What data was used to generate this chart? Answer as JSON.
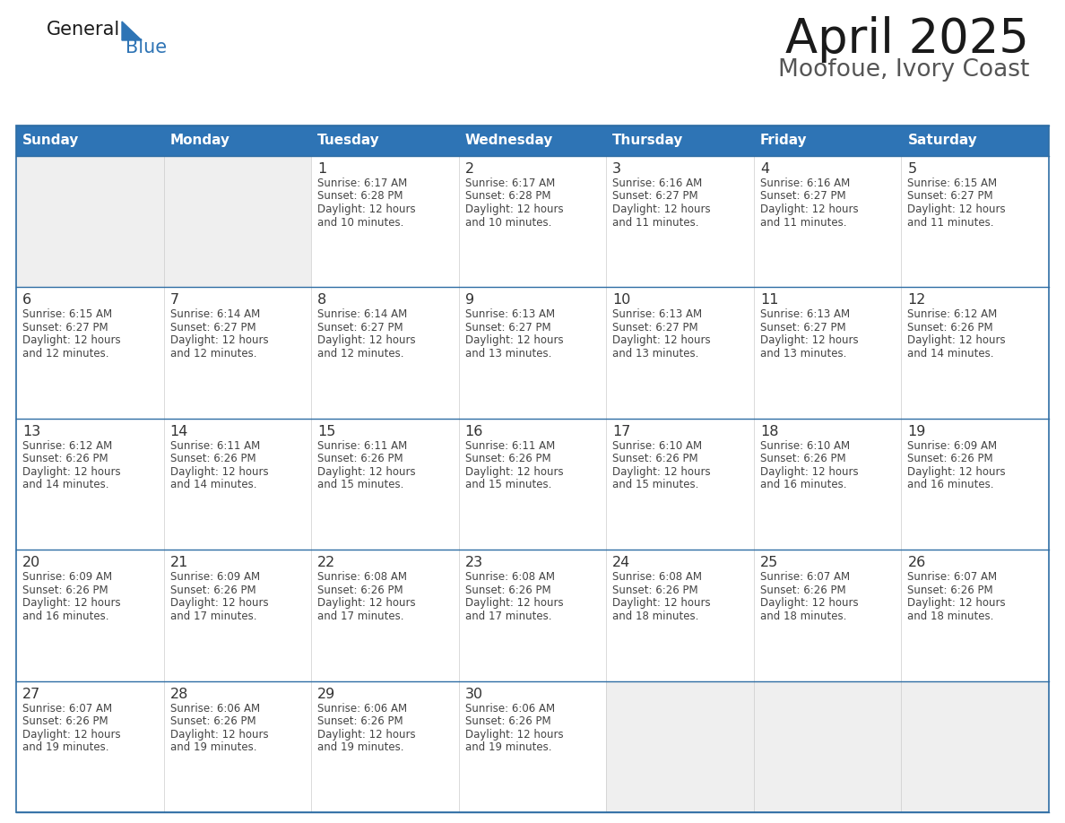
{
  "title": "April 2025",
  "subtitle": "Moofoue, Ivory Coast",
  "header_bg": "#2E74B5",
  "header_text_color": "#FFFFFF",
  "cell_bg_empty": "#EFEFEF",
  "cell_bg_filled": "#FFFFFF",
  "row_separator_color": "#2E6DA4",
  "text_color": "#444444",
  "day_number_color": "#333333",
  "day_headers": [
    "Sunday",
    "Monday",
    "Tuesday",
    "Wednesday",
    "Thursday",
    "Friday",
    "Saturday"
  ],
  "calendar": [
    [
      {
        "day": null,
        "sunrise": null,
        "sunset": null,
        "daylight_line1": null,
        "daylight_line2": null
      },
      {
        "day": null,
        "sunrise": null,
        "sunset": null,
        "daylight_line1": null,
        "daylight_line2": null
      },
      {
        "day": 1,
        "sunrise": "6:17 AM",
        "sunset": "6:28 PM",
        "daylight_line1": "12 hours",
        "daylight_line2": "and 10 minutes."
      },
      {
        "day": 2,
        "sunrise": "6:17 AM",
        "sunset": "6:28 PM",
        "daylight_line1": "12 hours",
        "daylight_line2": "and 10 minutes."
      },
      {
        "day": 3,
        "sunrise": "6:16 AM",
        "sunset": "6:27 PM",
        "daylight_line1": "12 hours",
        "daylight_line2": "and 11 minutes."
      },
      {
        "day": 4,
        "sunrise": "6:16 AM",
        "sunset": "6:27 PM",
        "daylight_line1": "12 hours",
        "daylight_line2": "and 11 minutes."
      },
      {
        "day": 5,
        "sunrise": "6:15 AM",
        "sunset": "6:27 PM",
        "daylight_line1": "12 hours",
        "daylight_line2": "and 11 minutes."
      }
    ],
    [
      {
        "day": 6,
        "sunrise": "6:15 AM",
        "sunset": "6:27 PM",
        "daylight_line1": "12 hours",
        "daylight_line2": "and 12 minutes."
      },
      {
        "day": 7,
        "sunrise": "6:14 AM",
        "sunset": "6:27 PM",
        "daylight_line1": "12 hours",
        "daylight_line2": "and 12 minutes."
      },
      {
        "day": 8,
        "sunrise": "6:14 AM",
        "sunset": "6:27 PM",
        "daylight_line1": "12 hours",
        "daylight_line2": "and 12 minutes."
      },
      {
        "day": 9,
        "sunrise": "6:13 AM",
        "sunset": "6:27 PM",
        "daylight_line1": "12 hours",
        "daylight_line2": "and 13 minutes."
      },
      {
        "day": 10,
        "sunrise": "6:13 AM",
        "sunset": "6:27 PM",
        "daylight_line1": "12 hours",
        "daylight_line2": "and 13 minutes."
      },
      {
        "day": 11,
        "sunrise": "6:13 AM",
        "sunset": "6:27 PM",
        "daylight_line1": "12 hours",
        "daylight_line2": "and 13 minutes."
      },
      {
        "day": 12,
        "sunrise": "6:12 AM",
        "sunset": "6:26 PM",
        "daylight_line1": "12 hours",
        "daylight_line2": "and 14 minutes."
      }
    ],
    [
      {
        "day": 13,
        "sunrise": "6:12 AM",
        "sunset": "6:26 PM",
        "daylight_line1": "12 hours",
        "daylight_line2": "and 14 minutes."
      },
      {
        "day": 14,
        "sunrise": "6:11 AM",
        "sunset": "6:26 PM",
        "daylight_line1": "12 hours",
        "daylight_line2": "and 14 minutes."
      },
      {
        "day": 15,
        "sunrise": "6:11 AM",
        "sunset": "6:26 PM",
        "daylight_line1": "12 hours",
        "daylight_line2": "and 15 minutes."
      },
      {
        "day": 16,
        "sunrise": "6:11 AM",
        "sunset": "6:26 PM",
        "daylight_line1": "12 hours",
        "daylight_line2": "and 15 minutes."
      },
      {
        "day": 17,
        "sunrise": "6:10 AM",
        "sunset": "6:26 PM",
        "daylight_line1": "12 hours",
        "daylight_line2": "and 15 minutes."
      },
      {
        "day": 18,
        "sunrise": "6:10 AM",
        "sunset": "6:26 PM",
        "daylight_line1": "12 hours",
        "daylight_line2": "and 16 minutes."
      },
      {
        "day": 19,
        "sunrise": "6:09 AM",
        "sunset": "6:26 PM",
        "daylight_line1": "12 hours",
        "daylight_line2": "and 16 minutes."
      }
    ],
    [
      {
        "day": 20,
        "sunrise": "6:09 AM",
        "sunset": "6:26 PM",
        "daylight_line1": "12 hours",
        "daylight_line2": "and 16 minutes."
      },
      {
        "day": 21,
        "sunrise": "6:09 AM",
        "sunset": "6:26 PM",
        "daylight_line1": "12 hours",
        "daylight_line2": "and 17 minutes."
      },
      {
        "day": 22,
        "sunrise": "6:08 AM",
        "sunset": "6:26 PM",
        "daylight_line1": "12 hours",
        "daylight_line2": "and 17 minutes."
      },
      {
        "day": 23,
        "sunrise": "6:08 AM",
        "sunset": "6:26 PM",
        "daylight_line1": "12 hours",
        "daylight_line2": "and 17 minutes."
      },
      {
        "day": 24,
        "sunrise": "6:08 AM",
        "sunset": "6:26 PM",
        "daylight_line1": "12 hours",
        "daylight_line2": "and 18 minutes."
      },
      {
        "day": 25,
        "sunrise": "6:07 AM",
        "sunset": "6:26 PM",
        "daylight_line1": "12 hours",
        "daylight_line2": "and 18 minutes."
      },
      {
        "day": 26,
        "sunrise": "6:07 AM",
        "sunset": "6:26 PM",
        "daylight_line1": "12 hours",
        "daylight_line2": "and 18 minutes."
      }
    ],
    [
      {
        "day": 27,
        "sunrise": "6:07 AM",
        "sunset": "6:26 PM",
        "daylight_line1": "12 hours",
        "daylight_line2": "and 19 minutes."
      },
      {
        "day": 28,
        "sunrise": "6:06 AM",
        "sunset": "6:26 PM",
        "daylight_line1": "12 hours",
        "daylight_line2": "and 19 minutes."
      },
      {
        "day": 29,
        "sunrise": "6:06 AM",
        "sunset": "6:26 PM",
        "daylight_line1": "12 hours",
        "daylight_line2": "and 19 minutes."
      },
      {
        "day": 30,
        "sunrise": "6:06 AM",
        "sunset": "6:26 PM",
        "daylight_line1": "12 hours",
        "daylight_line2": "and 19 minutes."
      },
      {
        "day": null,
        "sunrise": null,
        "sunset": null,
        "daylight_line1": null,
        "daylight_line2": null
      },
      {
        "day": null,
        "sunrise": null,
        "sunset": null,
        "daylight_line1": null,
        "daylight_line2": null
      },
      {
        "day": null,
        "sunrise": null,
        "sunset": null,
        "daylight_line1": null,
        "daylight_line2": null
      }
    ]
  ]
}
